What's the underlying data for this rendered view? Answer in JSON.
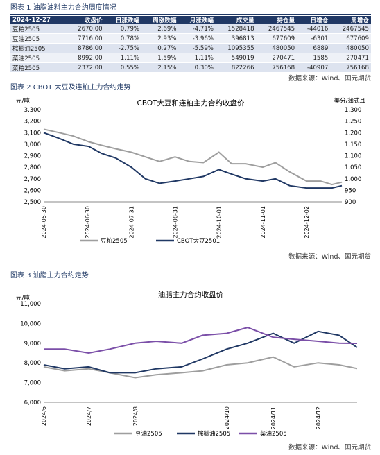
{
  "table1": {
    "caption": "图表 1 油脂油料主力合约周度情况",
    "headers": [
      "2024-12-27",
      "收盘价",
      "日涨跌幅",
      "周涨跌幅",
      "月涨跌幅",
      "成交量",
      "持仓量",
      "日增仓",
      "周增仓"
    ],
    "rows": [
      [
        "豆粕2505",
        "2670.00",
        "0.79%",
        "2.69%",
        "-4.71%",
        "1528418",
        "2467545",
        "-44016",
        "2467545"
      ],
      [
        "豆油2505",
        "7716.00",
        "0.78%",
        "2.93%",
        "-3.96%",
        "396813",
        "677609",
        "-6301",
        "677609"
      ],
      [
        "棕榈油2505",
        "8786.00",
        "-2.75%",
        "0.27%",
        "-5.59%",
        "1095355",
        "480050",
        "6889",
        "480050"
      ],
      [
        "菜油2505",
        "8992.00",
        "1.11%",
        "1.59%",
        "1.11%",
        "549019",
        "270471",
        "1585",
        "270471"
      ],
      [
        "菜粕2505",
        "2372.00",
        "0.55%",
        "2.15%",
        "0.30%",
        "822266",
        "756168",
        "-40907",
        "756168"
      ]
    ],
    "source": "数据来源：Wind、国元期货"
  },
  "chart2": {
    "caption": "图表 2 CBOT 大豆及连粕主力合约走势",
    "source": "数据来源：Wind、国元期货"
  },
  "chart3": {
    "caption": "图表 3 油脂主力合约走势",
    "source": "数据来源：Wind、国元期货"
  },
  "chart_data": [
    {
      "type": "line",
      "title": "CBOT大豆和连粕主力合约收盘价",
      "ylabel": "元/吨",
      "y2label": "美分/蒲式耳",
      "ylim": [
        2500,
        3300
      ],
      "y2lim": [
        900,
        1300
      ],
      "yticks": [
        "2,500",
        "2,600",
        "2,700",
        "2,800",
        "2,900",
        "3,000",
        "3,100",
        "3,200",
        "3,300"
      ],
      "y2ticks": [
        "900",
        "950",
        "1,000",
        "1,050",
        "1,100",
        "1,150",
        "1,200",
        "1,250",
        "1,300"
      ],
      "xticks": [
        "2024-05-30",
        "2024-06-30",
        "2024-07-31",
        "2024-08-31",
        "2024-10-01",
        "2024-11-01",
        "2024-12-02"
      ],
      "x": [
        "2024-05-30",
        "2024-06-10",
        "2024-06-20",
        "2024-07-01",
        "2024-07-10",
        "2024-07-20",
        "2024-07-31",
        "2024-08-10",
        "2024-08-20",
        "2024-08-31",
        "2024-09-10",
        "2024-09-20",
        "2024-10-01",
        "2024-10-10",
        "2024-10-20",
        "2024-11-01",
        "2024-11-10",
        "2024-11-20",
        "2024-12-02",
        "2024-12-12",
        "2024-12-20",
        "2024-12-27"
      ],
      "series": [
        {
          "name": "豆粕2505",
          "axis": "left",
          "color": "#9e9e9e",
          "values": [
            3130,
            3100,
            3070,
            3020,
            2990,
            2960,
            2930,
            2890,
            2850,
            2890,
            2850,
            2840,
            2930,
            2830,
            2830,
            2800,
            2840,
            2760,
            2680,
            2680,
            2650,
            2670
          ]
        },
        {
          "name": "CBOT大豆2501",
          "axis": "right",
          "color": "#203864",
          "values": [
            1200,
            1175,
            1150,
            1140,
            1110,
            1090,
            1050,
            1000,
            980,
            990,
            1000,
            1010,
            1040,
            1020,
            1000,
            990,
            1000,
            970,
            960,
            960,
            960,
            970
          ]
        }
      ]
    },
    {
      "type": "line",
      "title": "油脂主力合约收盘价",
      "ylabel": "元/吨",
      "ylim": [
        6000,
        11000
      ],
      "yticks": [
        "6,000",
        "7,000",
        "8,000",
        "9,000",
        "10,000",
        "11,000"
      ],
      "xticks": [
        "2024/6",
        "2024/7",
        "2024/8",
        "2024/10",
        "2024/11",
        "2024/12"
      ],
      "x": [
        "2024-06-01",
        "2024-06-15",
        "2024-07-01",
        "2024-07-15",
        "2024-08-01",
        "2024-08-15",
        "2024-09-01",
        "2024-09-15",
        "2024-10-01",
        "2024-10-15",
        "2024-11-01",
        "2024-11-15",
        "2024-12-01",
        "2024-12-15",
        "2024-12-27"
      ],
      "series": [
        {
          "name": "豆油2505",
          "color": "#9e9e9e",
          "values": [
            7800,
            7600,
            7700,
            7500,
            7250,
            7400,
            7500,
            7600,
            7900,
            8000,
            8300,
            7800,
            8000,
            7900,
            7716
          ]
        },
        {
          "name": "棕榈油2505",
          "color": "#203864",
          "values": [
            7900,
            7700,
            7800,
            7500,
            7500,
            7700,
            7800,
            8200,
            8700,
            9000,
            9500,
            9000,
            9600,
            9400,
            8786
          ]
        },
        {
          "name": "菜油2505",
          "color": "#7b4fa8",
          "values": [
            8700,
            8700,
            8500,
            8700,
            9000,
            9100,
            9000,
            9400,
            9500,
            9800,
            9300,
            9200,
            9100,
            9000,
            8992
          ]
        }
      ]
    }
  ]
}
